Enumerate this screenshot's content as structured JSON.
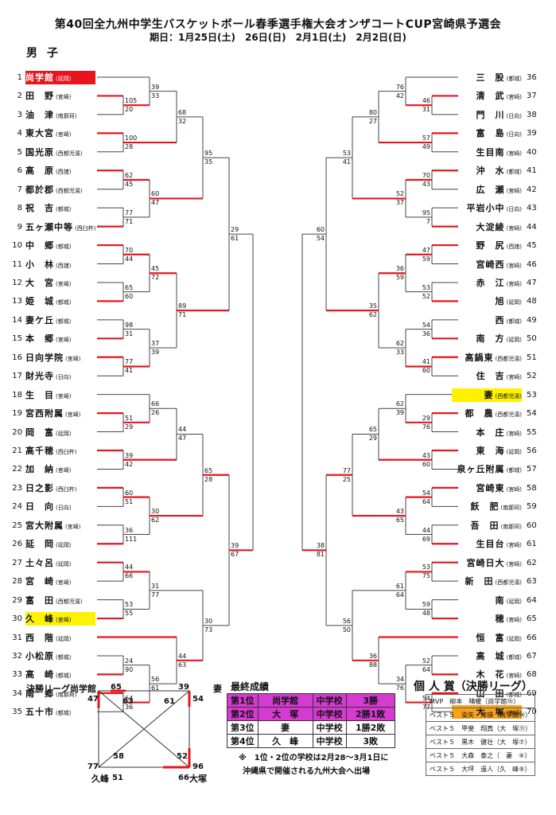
{
  "title": "第40回全九州中学生バスケットボール春季選手権大会オンザコートCUP宮崎県予選会",
  "dates": "期日：1月25日(土)　26日(日)　2月1日(土)　2月2日(日)",
  "section": "男子",
  "left_teams": [
    {
      "no": "1",
      "name": "尚学館",
      "pref": "(延岡)",
      "hl": "red"
    },
    {
      "no": "2",
      "name": "田　野",
      "pref": "(宮崎)"
    },
    {
      "no": "3",
      "name": "油　津",
      "pref": "(南那珂)"
    },
    {
      "no": "4",
      "name": "東大宮",
      "pref": "(宮崎)"
    },
    {
      "no": "5",
      "name": "国光原",
      "pref": "(西都児湯)"
    },
    {
      "no": "6",
      "name": "高　原",
      "pref": "(西諸)"
    },
    {
      "no": "7",
      "name": "都於郡",
      "pref": "(西都児湯)"
    },
    {
      "no": "8",
      "name": "祝　吉",
      "pref": "(都城)"
    },
    {
      "no": "9",
      "name": "五ヶ瀬中等",
      "pref": "(西臼杵)"
    },
    {
      "no": "10",
      "name": "中　郷",
      "pref": "(都城)"
    },
    {
      "no": "11",
      "name": "小　林",
      "pref": "(西諸)"
    },
    {
      "no": "12",
      "name": "大　宮",
      "pref": "(宮崎)"
    },
    {
      "no": "13",
      "name": "姫　城",
      "pref": "(都城)"
    },
    {
      "no": "14",
      "name": "妻ケ丘",
      "pref": "(都城)"
    },
    {
      "no": "15",
      "name": "本　郷",
      "pref": "(宮崎)"
    },
    {
      "no": "16",
      "name": "日向学院",
      "pref": "(宮崎)"
    },
    {
      "no": "17",
      "name": "財光寺",
      "pref": "(日向)"
    },
    {
      "no": "18",
      "name": "生　目",
      "pref": "(宮崎)"
    },
    {
      "no": "19",
      "name": "宮西附属",
      "pref": "(宮崎)"
    },
    {
      "no": "20",
      "name": "岡　富",
      "pref": "(延岡)"
    },
    {
      "no": "21",
      "name": "高千穂",
      "pref": "(西臼杵)"
    },
    {
      "no": "22",
      "name": "加　納",
      "pref": "(宮崎)"
    },
    {
      "no": "23",
      "name": "日之影",
      "pref": "(西臼杵)"
    },
    {
      "no": "24",
      "name": "日　向",
      "pref": "(日向)"
    },
    {
      "no": "25",
      "name": "宮大附属",
      "pref": "(宮崎)"
    },
    {
      "no": "26",
      "name": "延　岡",
      "pref": "(延岡)"
    },
    {
      "no": "27",
      "name": "土々呂",
      "pref": "(延岡)"
    },
    {
      "no": "28",
      "name": "宮　崎",
      "pref": "(宮崎)"
    },
    {
      "no": "29",
      "name": "富　田",
      "pref": "(西都児湯)"
    },
    {
      "no": "30",
      "name": "久　峰",
      "pref": "(宮崎)",
      "hl": "yel"
    },
    {
      "no": "31",
      "name": "西　階",
      "pref": "(延岡)"
    },
    {
      "no": "32",
      "name": "小松原",
      "pref": "(都城)"
    },
    {
      "no": "33",
      "name": "高　崎",
      "pref": "(都城)"
    },
    {
      "no": "34",
      "name": "南　郷",
      "pref": "(南那珂)"
    },
    {
      "no": "35",
      "name": "五十市",
      "pref": "(都城)"
    }
  ],
  "right_teams": [
    {
      "no": "36",
      "name": "三　股",
      "pref": "(都城)"
    },
    {
      "no": "37",
      "name": "清　武",
      "pref": "(宮崎)"
    },
    {
      "no": "38",
      "name": "門　川",
      "pref": "(日向)"
    },
    {
      "no": "39",
      "name": "富　島",
      "pref": "(日向)"
    },
    {
      "no": "40",
      "name": "生目南",
      "pref": "(宮崎)"
    },
    {
      "no": "41",
      "name": "沖　水",
      "pref": "(都城)"
    },
    {
      "no": "42",
      "name": "広　瀬",
      "pref": "(宮崎)"
    },
    {
      "no": "43",
      "name": "平岩小中",
      "pref": "(日向)"
    },
    {
      "no": "44",
      "name": "大淀綾",
      "pref": "(宮崎)"
    },
    {
      "no": "45",
      "name": "野　尻",
      "pref": "(西諸)"
    },
    {
      "no": "46",
      "name": "宮崎西",
      "pref": "(宮崎)"
    },
    {
      "no": "47",
      "name": "赤　江",
      "pref": "(宮崎)"
    },
    {
      "no": "48",
      "name": "旭",
      "pref": "(延岡)"
    },
    {
      "no": "49",
      "name": "西",
      "pref": "(都城)"
    },
    {
      "no": "50",
      "name": "南　方",
      "pref": "(延岡)"
    },
    {
      "no": "51",
      "name": "高鍋東",
      "pref": "(西都児湯)"
    },
    {
      "no": "52",
      "name": "住　吉",
      "pref": "(宮崎)"
    },
    {
      "no": "53",
      "name": "妻",
      "pref": "(西都児湯)",
      "hl": "yel"
    },
    {
      "no": "54",
      "name": "都　農",
      "pref": "(西都児湯)"
    },
    {
      "no": "55",
      "name": "本　庄",
      "pref": "(宮崎)"
    },
    {
      "no": "56",
      "name": "東　海",
      "pref": "(延岡)"
    },
    {
      "no": "57",
      "name": "泉ヶ丘附属",
      "pref": "(都城)"
    },
    {
      "no": "58",
      "name": "宮崎東",
      "pref": "(宮崎)"
    },
    {
      "no": "59",
      "name": "飫　肥",
      "pref": "(南那珂)"
    },
    {
      "no": "60",
      "name": "吾　田",
      "pref": "(南那珂)"
    },
    {
      "no": "61",
      "name": "生目台",
      "pref": "(宮崎)"
    },
    {
      "no": "62",
      "name": "宮崎日大",
      "pref": "(宮崎)"
    },
    {
      "no": "63",
      "name": "新　田",
      "pref": "(西都児湯)"
    },
    {
      "no": "64",
      "name": "南",
      "pref": "(延岡)"
    },
    {
      "no": "65",
      "name": "穂",
      "pref": "(宮崎)"
    },
    {
      "no": "66",
      "name": "恒　富",
      "pref": "(延岡)"
    },
    {
      "no": "67",
      "name": "高　城",
      "pref": "(都城)"
    },
    {
      "no": "68",
      "name": "木　花",
      "pref": "(宮崎)"
    },
    {
      "no": "69",
      "name": "山　田",
      "pref": "(都城)"
    },
    {
      "no": "70",
      "name": "大　塚",
      "pref": "(宮崎)",
      "hl": "org"
    }
  ],
  "final_league": {
    "label": "決勝リーグ",
    "teams": [
      "尚学館",
      "妻",
      "久峰",
      "大塚"
    ],
    "scores": {
      "top_left": "65",
      "top_right": "39",
      "left_top": "47",
      "right_top": "54",
      "diag_a": "63",
      "diag_b": "61",
      "diag_c": "58",
      "diag_d": "52",
      "left_bottom": "77",
      "bottom_left": "51",
      "right_bottom": "96",
      "bottom_right": "66"
    }
  },
  "results": {
    "title": "最終成績",
    "rows": [
      [
        "第1位",
        "尚学館",
        "中学校",
        "3勝"
      ],
      [
        "第2位",
        "大　塚",
        "中学校",
        "2勝1敗"
      ],
      [
        "第3位",
        "妻",
        "中学校",
        "1勝2敗"
      ],
      [
        "第4位",
        "久　峰",
        "中学校",
        "3敗"
      ]
    ],
    "note1": "※　1位・2位の学校は2月28～3月1日に",
    "note2": "沖縄県で開催される九州大会へ出場"
  },
  "awards": {
    "title": "個 人 賞（決勝リーグ）",
    "rows": [
      "MVP　柳本　晴暖（尚学館⑮）",
      "ベスト５　染矢　倖瑛（尚学館⑭）",
      "ベスト５　甲斐　翔真（大　塚⑪）",
      "ベスト５　黒木　健壮（大　塚⑦）",
      "ベスト５　大森　泰之（　妻　④）",
      "ベスト５　大坪　遥人（久　峰⑨）"
    ]
  },
  "scores_left": [
    [
      "105",
      "20"
    ],
    [
      "39",
      "33"
    ],
    [
      "100",
      "28"
    ],
    [
      "68",
      "32"
    ],
    [
      "62",
      "45"
    ],
    [
      "77",
      "71"
    ],
    [
      "60",
      "47"
    ],
    [
      "95",
      "35"
    ],
    [
      "70",
      "44"
    ],
    [
      "65",
      "60"
    ],
    [
      "45",
      "72"
    ],
    [
      "98",
      "31"
    ],
    [
      "77",
      "41"
    ],
    [
      "37",
      "39"
    ],
    [
      "89",
      "71"
    ],
    [
      "29",
      "61"
    ],
    [
      "51",
      "29"
    ],
    [
      "66",
      "26"
    ],
    [
      "39",
      "42"
    ],
    [
      "44",
      "47"
    ],
    [
      "60",
      "51"
    ],
    [
      "36",
      "111"
    ],
    [
      "30",
      "62"
    ],
    [
      "65",
      "28"
    ],
    [
      "44",
      "66"
    ],
    [
      "53",
      "55"
    ],
    [
      "31",
      "77"
    ],
    [
      "24",
      "90"
    ],
    [
      "64",
      "36"
    ],
    [
      "56",
      "61"
    ],
    [
      "44",
      "63"
    ],
    [
      "30",
      "73"
    ],
    [
      "39",
      "67"
    ]
  ],
  "scores_right": [
    [
      "46",
      "31"
    ],
    [
      "76",
      "42"
    ],
    [
      "57",
      "49"
    ],
    [
      "80",
      "27"
    ],
    [
      "70",
      "43"
    ],
    [
      "95",
      "7"
    ],
    [
      "52",
      "37"
    ],
    [
      "53",
      "41"
    ],
    [
      "47",
      "59"
    ],
    [
      "53",
      "52"
    ],
    [
      "36",
      "59"
    ],
    [
      "54",
      "36"
    ],
    [
      "41",
      "60"
    ],
    [
      "62",
      "33"
    ],
    [
      "35",
      "62"
    ],
    [
      "60",
      "54"
    ],
    [
      "29",
      "76"
    ],
    [
      "62",
      "39"
    ],
    [
      "43",
      "60"
    ],
    [
      "65",
      "29"
    ],
    [
      "54",
      "64"
    ],
    [
      "44",
      "69"
    ],
    [
      "43",
      "65"
    ],
    [
      "77",
      "25"
    ],
    [
      "53",
      "75"
    ],
    [
      "59",
      "48"
    ],
    [
      "61",
      "64"
    ],
    [
      "52",
      "64"
    ],
    [
      "54",
      "77"
    ],
    [
      "34",
      "76"
    ],
    [
      "36",
      "88"
    ],
    [
      "56",
      "50"
    ],
    [
      "38",
      "81"
    ]
  ]
}
